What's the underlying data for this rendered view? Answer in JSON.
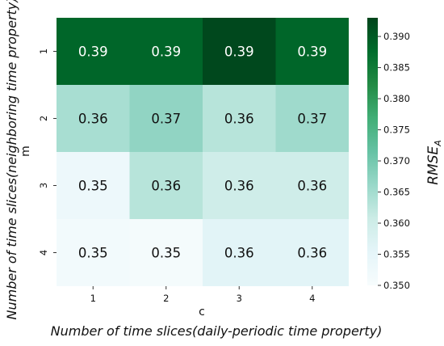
{
  "chart_data": {
    "type": "heatmap",
    "x_symbol": "c",
    "y_symbol": "m",
    "x_description": "Number of time slices(daily-periodic time property)",
    "y_description": "Number of time slices(neighboring time property)",
    "x_categories": [
      "1",
      "2",
      "3",
      "4"
    ],
    "y_categories": [
      "1",
      "2",
      "3",
      "4"
    ],
    "values": [
      [
        0.3885,
        0.3885,
        0.3925,
        0.3885
      ],
      [
        0.3645,
        0.367,
        0.363,
        0.3655
      ],
      [
        0.353,
        0.363,
        0.36,
        0.36
      ],
      [
        0.3515,
        0.351,
        0.356,
        0.356
      ]
    ],
    "cell_labels": [
      [
        "0.39",
        "0.39",
        "0.39",
        "0.39"
      ],
      [
        "0.36",
        "0.37",
        "0.36",
        "0.37"
      ],
      [
        "0.35",
        "0.36",
        "0.36",
        "0.36"
      ],
      [
        "0.35",
        "0.35",
        "0.36",
        "0.36"
      ]
    ],
    "colorbar": {
      "label_base": "RMSE",
      "label_sub": "A",
      "min": 0.35,
      "max": 0.393,
      "ticks": [
        "0.350",
        "0.355",
        "0.360",
        "0.365",
        "0.370",
        "0.375",
        "0.380",
        "0.385",
        "0.390"
      ],
      "colormap": "BuGn",
      "colors": [
        "#f7fcfd",
        "#e5f5f9",
        "#ccece6",
        "#99d8c9",
        "#66c2a4",
        "#41ae76",
        "#238b45",
        "#006d2c",
        "#00441b"
      ]
    }
  }
}
